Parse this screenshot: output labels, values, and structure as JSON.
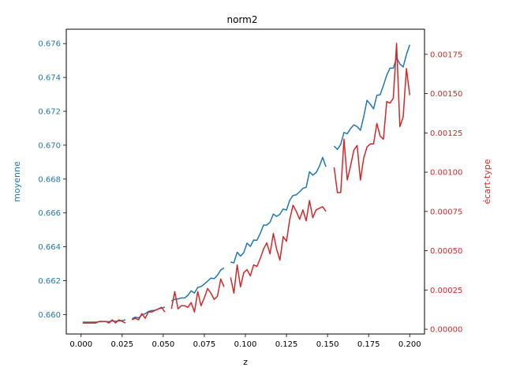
{
  "chart_data": {
    "type": "line",
    "title": "norm2",
    "xlabel": "z",
    "ylabel_left": "moyenne",
    "ylabel_right": "écart-type",
    "xlim": [
      -0.009,
      0.209
    ],
    "ylim_left": [
      0.65885,
      0.67685
    ],
    "ylim_right": [
      -3e-05,
      0.00191
    ],
    "x_ticks": [
      0.0,
      0.025,
      0.05,
      0.075,
      0.1,
      0.125,
      0.15,
      0.175,
      0.2
    ],
    "x_tick_labels": [
      "0.000",
      "0.025",
      "0.050",
      "0.075",
      "0.100",
      "0.125",
      "0.150",
      "0.175",
      "0.200"
    ],
    "y_left_ticks": [
      0.66,
      0.662,
      0.664,
      0.666,
      0.668,
      0.67,
      0.672,
      0.674,
      0.676
    ],
    "y_left_tick_labels": [
      "0.660",
      "0.662",
      "0.664",
      "0.666",
      "0.668",
      "0.670",
      "0.672",
      "0.674",
      "0.676"
    ],
    "y_right_ticks": [
      0.0,
      0.00025,
      0.0005,
      0.00075,
      0.001,
      0.00125,
      0.0015,
      0.00175
    ],
    "y_right_tick_labels": [
      "0.00000",
      "0.00025",
      "0.00050",
      "0.00075",
      "0.00100",
      "0.00125",
      "0.00150",
      "0.00175"
    ],
    "colors": {
      "left": "#1f77b4",
      "right": "#d62728"
    },
    "grid": false,
    "series": [
      {
        "axis": "left",
        "color": "#1f77b4",
        "segments": [
          [
            [
              0.001,
              0.65955
            ],
            [
              0.003,
              0.65955
            ],
            [
              0.005,
              0.65955
            ],
            [
              0.007,
              0.65955
            ],
            [
              0.009,
              0.65955
            ],
            [
              0.011,
              0.65957
            ],
            [
              0.013,
              0.65958
            ],
            [
              0.015,
              0.65958
            ],
            [
              0.017,
              0.65958
            ],
            [
              0.019,
              0.65962
            ],
            [
              0.021,
              0.6596
            ],
            [
              0.023,
              0.65962
            ],
            [
              0.025,
              0.65965
            ],
            [
              0.027,
              0.65968
            ]
          ],
          [
            [
              0.031,
              0.65975
            ],
            [
              0.033,
              0.65985
            ],
            [
              0.035,
              0.6598
            ],
            [
              0.037,
              0.65997
            ],
            [
              0.039,
              0.66005
            ],
            [
              0.041,
              0.66018
            ],
            [
              0.043,
              0.66023
            ],
            [
              0.045,
              0.66025
            ],
            [
              0.047,
              0.66033
            ],
            [
              0.049,
              0.66038
            ],
            [
              0.051,
              0.66043
            ]
          ],
          [
            [
              0.055,
              0.6608
            ],
            [
              0.057,
              0.6609
            ],
            [
              0.059,
              0.66092
            ],
            [
              0.061,
              0.66098
            ],
            [
              0.063,
              0.66098
            ],
            [
              0.065,
              0.66113
            ],
            [
              0.067,
              0.6614
            ],
            [
              0.069,
              0.66127
            ],
            [
              0.071,
              0.6616
            ],
            [
              0.073,
              0.66165
            ],
            [
              0.075,
              0.6618
            ],
            [
              0.077,
              0.66197
            ],
            [
              0.079,
              0.66215
            ],
            [
              0.081,
              0.66212
            ],
            [
              0.083,
              0.66232
            ],
            [
              0.085,
              0.66263
            ],
            [
              0.087,
              0.66275
            ]
          ],
          [
            [
              0.091,
              0.6631
            ],
            [
              0.093,
              0.66305
            ],
            [
              0.095,
              0.66368
            ],
            [
              0.097,
              0.66345
            ],
            [
              0.099,
              0.66365
            ],
            [
              0.101,
              0.66422
            ],
            [
              0.103,
              0.66402
            ],
            [
              0.105,
              0.6644
            ],
            [
              0.107,
              0.66438
            ],
            [
              0.109,
              0.66478
            ],
            [
              0.111,
              0.66528
            ],
            [
              0.113,
              0.66528
            ],
            [
              0.115,
              0.66545
            ],
            [
              0.117,
              0.66593
            ],
            [
              0.119,
              0.6658
            ],
            [
              0.121,
              0.66592
            ],
            [
              0.123,
              0.66623
            ],
            [
              0.125,
              0.66617
            ],
            [
              0.127,
              0.66675
            ],
            [
              0.129,
              0.66703
            ],
            [
              0.131,
              0.66707
            ],
            [
              0.133,
              0.66725
            ],
            [
              0.135,
              0.66745
            ],
            [
              0.137,
              0.66752
            ],
            [
              0.139,
              0.66843
            ],
            [
              0.141,
              0.66823
            ],
            [
              0.143,
              0.66838
            ],
            [
              0.145,
              0.66875
            ],
            [
              0.147,
              0.66928
            ],
            [
              0.149,
              0.66873
            ]
          ],
          [
            [
              0.154,
              0.66995
            ],
            [
              0.156,
              0.66975
            ],
            [
              0.158,
              0.67005
            ],
            [
              0.16,
              0.67075
            ],
            [
              0.162,
              0.67068
            ],
            [
              0.164,
              0.67098
            ],
            [
              0.166,
              0.6712
            ],
            [
              0.168,
              0.6711
            ],
            [
              0.17,
              0.67088
            ],
            [
              0.172,
              0.67168
            ],
            [
              0.174,
              0.67265
            ],
            [
              0.176,
              0.67242
            ],
            [
              0.178,
              0.67215
            ],
            [
              0.18,
              0.67295
            ],
            [
              0.182,
              0.67298
            ],
            [
              0.184,
              0.67353
            ],
            [
              0.186,
              0.67413
            ],
            [
              0.188,
              0.67455
            ],
            [
              0.19,
              0.67455
            ],
            [
              0.192,
              0.67518
            ],
            [
              0.194,
              0.6748
            ],
            [
              0.196,
              0.67462
            ],
            [
              0.198,
              0.67535
            ],
            [
              0.2,
              0.67593
            ]
          ]
        ]
      },
      {
        "axis": "right",
        "color": "#d62728",
        "segments": [
          [
            [
              0.001,
              4e-05
            ],
            [
              0.003,
              4e-05
            ],
            [
              0.005,
              4e-05
            ],
            [
              0.007,
              4e-05
            ],
            [
              0.009,
              4e-05
            ],
            [
              0.011,
              5e-05
            ],
            [
              0.013,
              5e-05
            ],
            [
              0.015,
              5e-05
            ],
            [
              0.017,
              4e-05
            ],
            [
              0.019,
              6e-05
            ],
            [
              0.021,
              4e-05
            ],
            [
              0.023,
              6e-05
            ],
            [
              0.025,
              5e-05
            ],
            [
              0.027,
              4e-05
            ]
          ],
          [
            [
              0.031,
              6e-05
            ],
            [
              0.033,
              7e-05
            ],
            [
              0.035,
              6e-05
            ],
            [
              0.037,
              0.0001
            ],
            [
              0.039,
              7e-05
            ],
            [
              0.041,
              0.00011
            ],
            [
              0.043,
              0.00011
            ],
            [
              0.045,
              0.00012
            ],
            [
              0.047,
              0.00013
            ],
            [
              0.049,
              0.00014
            ],
            [
              0.051,
              0.00011
            ]
          ],
          [
            [
              0.055,
              0.00013
            ],
            [
              0.057,
              0.00024
            ],
            [
              0.059,
              0.00013
            ],
            [
              0.061,
              0.00015
            ],
            [
              0.063,
              0.00015
            ],
            [
              0.065,
              0.00014
            ],
            [
              0.067,
              0.00017
            ],
            [
              0.069,
              0.00011
            ],
            [
              0.071,
              0.00024
            ],
            [
              0.073,
              0.00015
            ],
            [
              0.075,
              0.0002
            ],
            [
              0.077,
              0.00026
            ],
            [
              0.079,
              0.00023
            ],
            [
              0.081,
              0.00019
            ],
            [
              0.083,
              0.00021
            ],
            [
              0.085,
              0.00032
            ],
            [
              0.087,
              0.00027
            ]
          ],
          [
            [
              0.091,
              0.00033
            ],
            [
              0.093,
              0.00023
            ],
            [
              0.095,
              0.00041
            ],
            [
              0.097,
              0.00027
            ],
            [
              0.099,
              0.00036
            ],
            [
              0.101,
              0.00038
            ],
            [
              0.103,
              0.00034
            ],
            [
              0.105,
              0.00041
            ],
            [
              0.107,
              0.0004
            ],
            [
              0.109,
              0.00045
            ],
            [
              0.111,
              0.00051
            ],
            [
              0.113,
              0.00055
            ],
            [
              0.115,
              0.00048
            ],
            [
              0.117,
              0.00061
            ],
            [
              0.119,
              0.00051
            ],
            [
              0.121,
              0.00044
            ],
            [
              0.123,
              0.00059
            ],
            [
              0.125,
              0.00056
            ],
            [
              0.127,
              0.0007
            ],
            [
              0.129,
              0.00079
            ],
            [
              0.131,
              0.00075
            ],
            [
              0.133,
              0.0007
            ],
            [
              0.135,
              0.00076
            ],
            [
              0.137,
              0.00069
            ],
            [
              0.139,
              0.00082
            ],
            [
              0.141,
              0.00071
            ],
            [
              0.143,
              0.00076
            ],
            [
              0.145,
              0.00077
            ],
            [
              0.147,
              0.00078
            ],
            [
              0.149,
              0.00075
            ]
          ],
          [
            [
              0.154,
              0.00103
            ],
            [
              0.156,
              0.00087
            ],
            [
              0.158,
              0.00087
            ],
            [
              0.16,
              0.00121
            ],
            [
              0.162,
              0.00095
            ],
            [
              0.164,
              0.00104
            ],
            [
              0.166,
              0.00114
            ],
            [
              0.168,
              0.00117
            ],
            [
              0.17,
              0.00095
            ],
            [
              0.172,
              0.00109
            ],
            [
              0.174,
              0.00116
            ],
            [
              0.176,
              0.00118
            ],
            [
              0.178,
              0.00118
            ],
            [
              0.18,
              0.00131
            ],
            [
              0.182,
              0.00123
            ],
            [
              0.184,
              0.00121
            ],
            [
              0.186,
              0.00145
            ],
            [
              0.188,
              0.00144
            ],
            [
              0.19,
              0.00147
            ],
            [
              0.192,
              0.00182
            ],
            [
              0.194,
              0.00129
            ],
            [
              0.196,
              0.00135
            ],
            [
              0.198,
              0.00166
            ],
            [
              0.2,
              0.00149
            ]
          ]
        ]
      }
    ]
  }
}
